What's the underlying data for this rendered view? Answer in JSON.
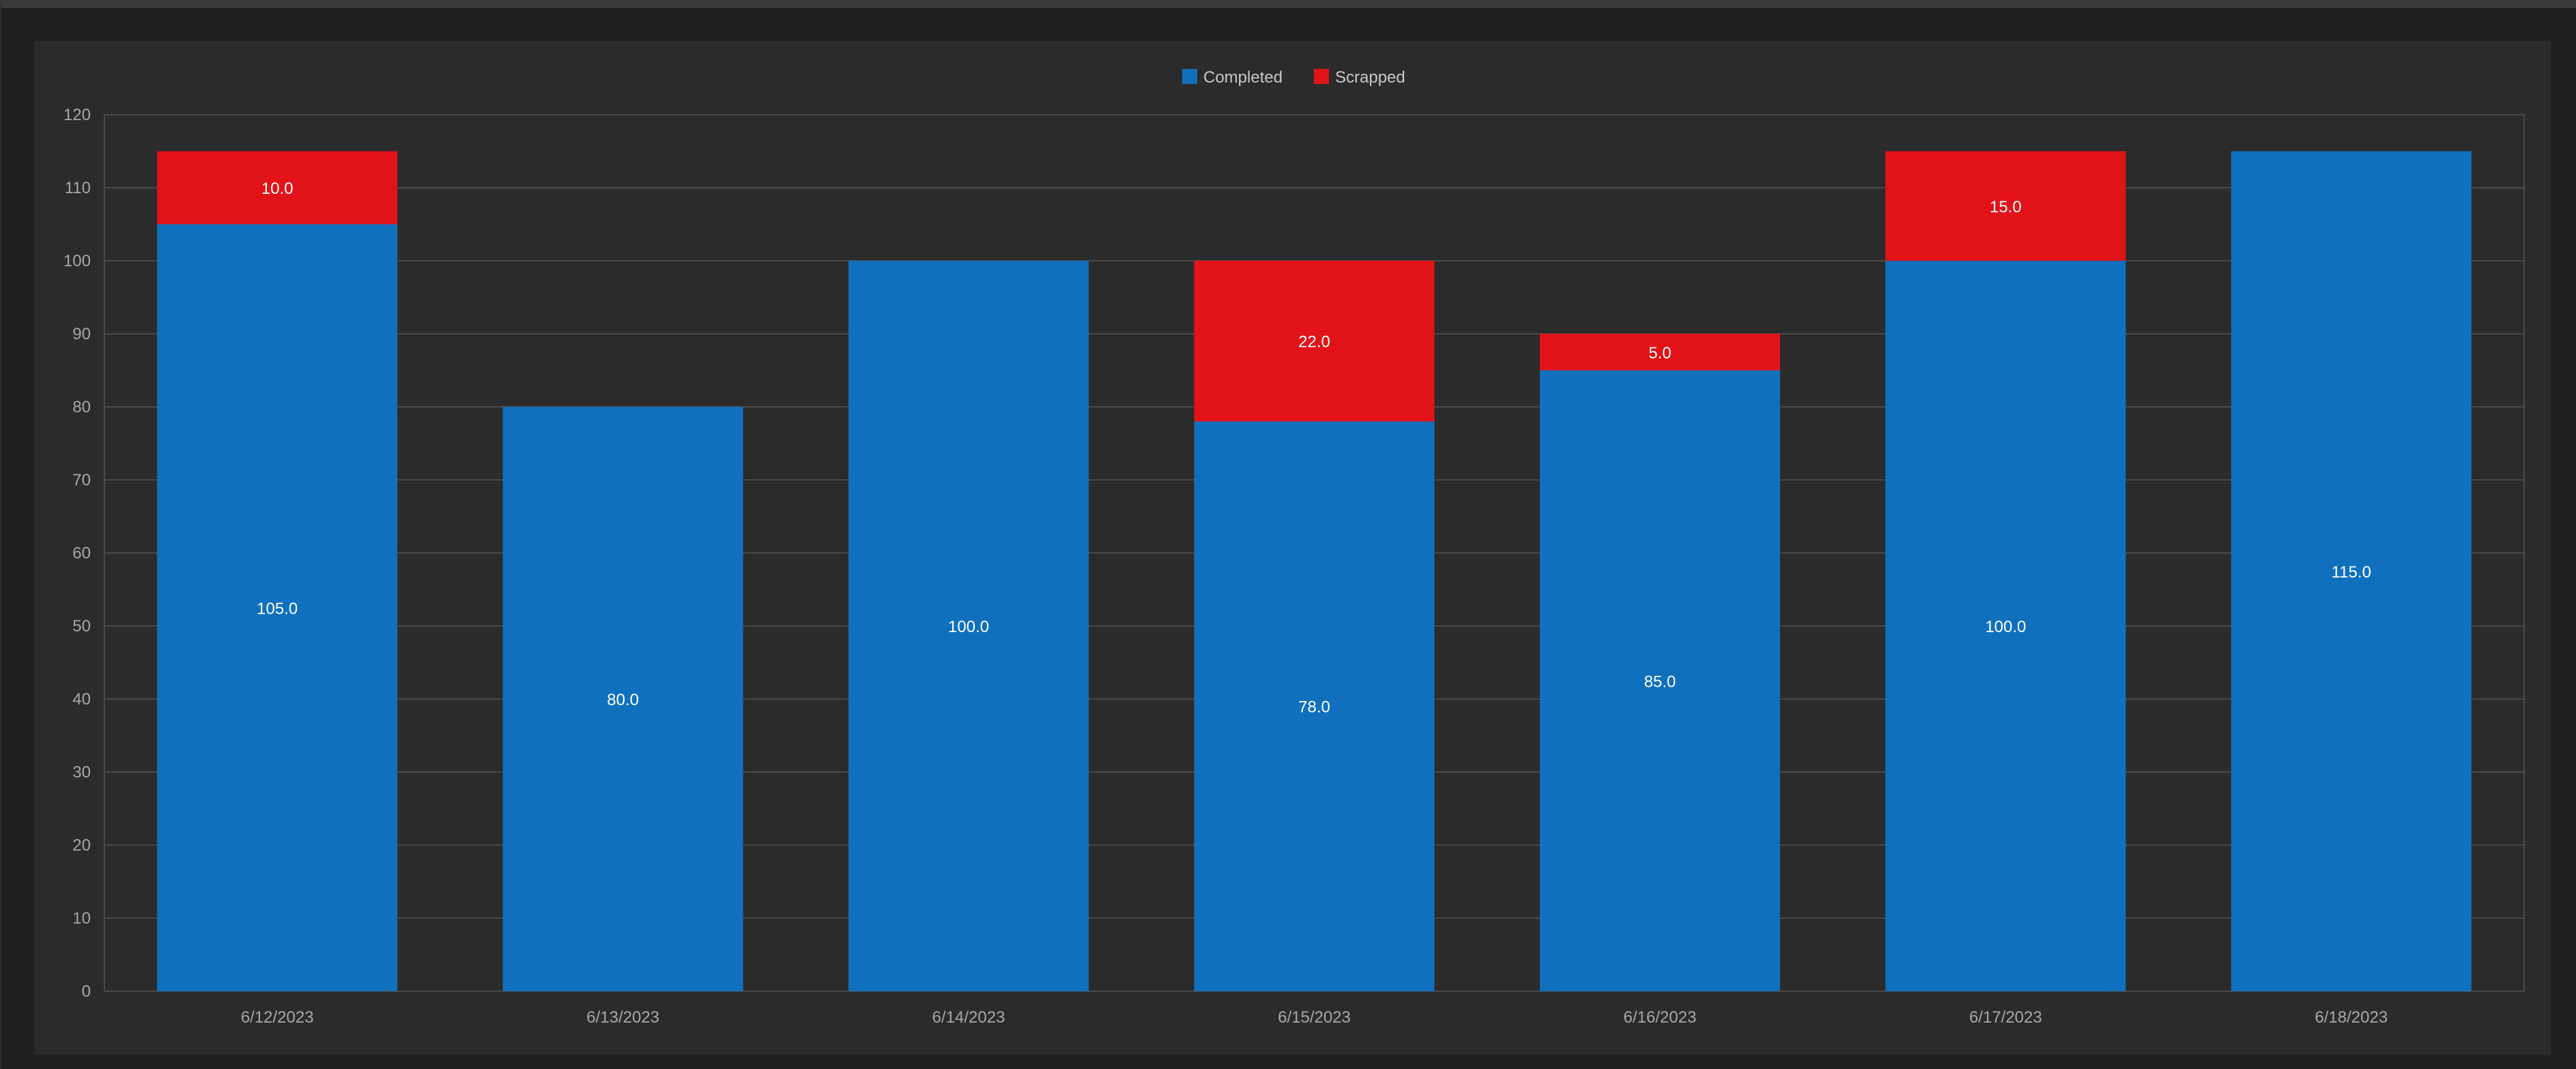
{
  "chart_data": {
    "type": "bar",
    "stacked": true,
    "title": "",
    "xlabel": "",
    "ylabel": "",
    "categories": [
      "6/12/2023",
      "6/13/2023",
      "6/14/2023",
      "6/15/2023",
      "6/16/2023",
      "6/17/2023",
      "6/18/2023"
    ],
    "series": [
      {
        "name": "Completed",
        "color": "#1170bd",
        "values": [
          105,
          80,
          100,
          78,
          85,
          100,
          115
        ],
        "labels": [
          "105.0",
          "80.0",
          "100.0",
          "78.0",
          "85.0",
          "100.0",
          "115.0"
        ]
      },
      {
        "name": "Scrapped",
        "color": "#e21318",
        "values": [
          10,
          0,
          0,
          22,
          5,
          15,
          0
        ],
        "labels": [
          "10.0",
          "",
          "",
          "22.0",
          "5.0",
          "15.0",
          ""
        ]
      }
    ],
    "ylim": [
      0,
      120
    ],
    "yticks": [
      "0",
      "10",
      "20",
      "30",
      "40",
      "50",
      "60",
      "70",
      "80",
      "90",
      "100",
      "110",
      "120"
    ],
    "grid": true,
    "legend": "top-center"
  }
}
